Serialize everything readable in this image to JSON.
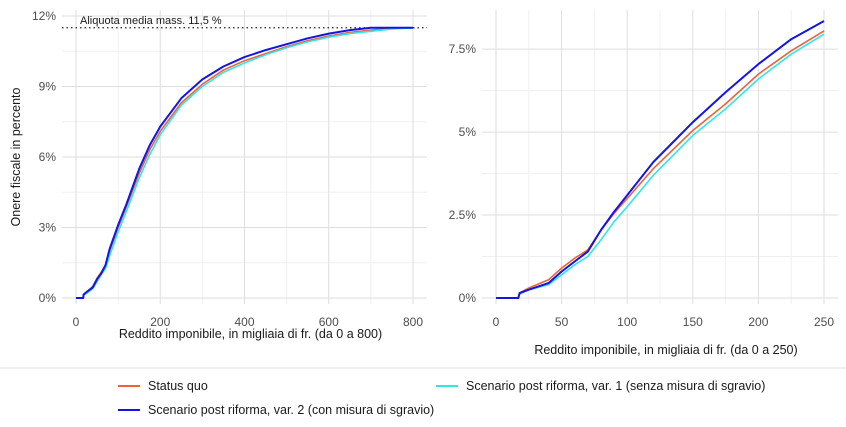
{
  "chart_data": [
    {
      "type": "line",
      "xlabel": "Reddito imponibile, in migliaia di fr. (da 0 a 800)",
      "ylabel": "Onere fiscale in percento",
      "xlim": [
        0,
        800
      ],
      "ylim": [
        0,
        12
      ],
      "x_ticks": [
        0,
        200,
        400,
        600,
        800
      ],
      "x_tick_labels": [
        "0",
        "200",
        "400",
        "600",
        "800"
      ],
      "y_ticks": [
        0,
        3,
        6,
        9,
        12
      ],
      "y_tick_labels": [
        "0%",
        "3%",
        "6%",
        "9%",
        "12%"
      ],
      "grid": true,
      "reference_line": {
        "y": 11.5,
        "style": "dotted",
        "label": "Aliquota media mass. 11,5 %"
      },
      "series": [
        {
          "name": "Status quo",
          "color": "#e8643c",
          "x": [
            0,
            17,
            18,
            25,
            40,
            50,
            60,
            70,
            80,
            90,
            100,
            120,
            150,
            175,
            200,
            250,
            300,
            350,
            400,
            450,
            500,
            550,
            600,
            650,
            700,
            750,
            800
          ],
          "y": [
            0,
            0,
            0.15,
            0.25,
            0.5,
            0.85,
            1.1,
            1.4,
            2.0,
            2.5,
            3.0,
            3.9,
            5.3,
            6.3,
            7.1,
            8.3,
            9.1,
            9.7,
            10.1,
            10.4,
            10.7,
            10.95,
            11.15,
            11.3,
            11.4,
            11.5,
            11.5
          ]
        },
        {
          "name": "Scenario post riforma, var. 1 (senza misura di sgravio)",
          "color": "#33e6e6",
          "x": [
            0,
            17,
            18,
            25,
            40,
            50,
            60,
            70,
            80,
            90,
            100,
            120,
            150,
            175,
            200,
            250,
            300,
            350,
            400,
            450,
            500,
            550,
            600,
            650,
            700,
            750,
            800
          ],
          "y": [
            0,
            0,
            0.12,
            0.2,
            0.4,
            0.7,
            1.0,
            1.25,
            1.8,
            2.3,
            2.8,
            3.7,
            5.1,
            6.1,
            6.95,
            8.2,
            9.0,
            9.6,
            10.0,
            10.35,
            10.65,
            10.9,
            11.1,
            11.25,
            11.35,
            11.45,
            11.5
          ]
        },
        {
          "name": "Scenario post riforma, var. 2 (con misura di sgravio)",
          "color": "#1414e6",
          "x": [
            0,
            17,
            18,
            25,
            40,
            50,
            60,
            70,
            80,
            90,
            100,
            120,
            150,
            175,
            200,
            250,
            300,
            350,
            400,
            450,
            500,
            550,
            600,
            650,
            700,
            750,
            800
          ],
          "y": [
            0,
            0,
            0.15,
            0.25,
            0.45,
            0.8,
            1.05,
            1.4,
            2.1,
            2.6,
            3.1,
            4.0,
            5.5,
            6.5,
            7.3,
            8.5,
            9.3,
            9.85,
            10.25,
            10.55,
            10.8,
            11.05,
            11.25,
            11.4,
            11.5,
            11.5,
            11.5
          ]
        }
      ]
    },
    {
      "type": "line",
      "xlabel": "Reddito imponibile, in migliaia di fr. (da 0 a 250)",
      "ylabel": "",
      "xlim": [
        0,
        250
      ],
      "ylim": [
        0,
        8.5
      ],
      "x_ticks": [
        0,
        50,
        100,
        150,
        200,
        250
      ],
      "x_tick_labels": [
        "0",
        "50",
        "100",
        "150",
        "200",
        "250"
      ],
      "y_ticks": [
        0,
        2.5,
        5,
        7.5
      ],
      "y_tick_labels": [
        "0%",
        "2.5%",
        "5%",
        "7.5%"
      ],
      "grid": true,
      "series": [
        {
          "name": "Status quo",
          "color": "#e8643c",
          "x": [
            0,
            17,
            18,
            25,
            40,
            50,
            60,
            70,
            80,
            90,
            100,
            120,
            150,
            175,
            200,
            225,
            250
          ],
          "y": [
            0,
            0,
            0.15,
            0.3,
            0.55,
            0.9,
            1.2,
            1.45,
            2.05,
            2.55,
            3.0,
            3.9,
            5.05,
            5.85,
            6.75,
            7.45,
            8.05
          ]
        },
        {
          "name": "Scenario post riforma, var. 1 (senza misura di sgravio)",
          "color": "#33e6e6",
          "x": [
            0,
            17,
            18,
            25,
            40,
            50,
            60,
            70,
            80,
            90,
            100,
            120,
            150,
            175,
            200,
            225,
            250
          ],
          "y": [
            0,
            0,
            0.12,
            0.25,
            0.4,
            0.7,
            1.0,
            1.25,
            1.75,
            2.3,
            2.75,
            3.7,
            4.9,
            5.7,
            6.6,
            7.35,
            7.95
          ]
        },
        {
          "name": "Scenario post riforma, var. 2 (con misura di sgravio)",
          "color": "#1414e6",
          "x": [
            0,
            17,
            18,
            25,
            40,
            50,
            60,
            70,
            80,
            90,
            100,
            120,
            150,
            175,
            200,
            225,
            250
          ],
          "y": [
            0,
            0,
            0.15,
            0.25,
            0.45,
            0.8,
            1.1,
            1.4,
            2.05,
            2.6,
            3.1,
            4.1,
            5.3,
            6.2,
            7.05,
            7.8,
            8.35
          ]
        }
      ]
    }
  ],
  "legend": {
    "items": [
      {
        "label": "Status quo",
        "color": "#e8643c"
      },
      {
        "label": "Scenario post riforma, var. 1 (senza misura di sgravio)",
        "color": "#33e6e6"
      },
      {
        "label": "Scenario post riforma, var. 2 (con misura di sgravio)",
        "color": "#1414e6"
      }
    ]
  }
}
